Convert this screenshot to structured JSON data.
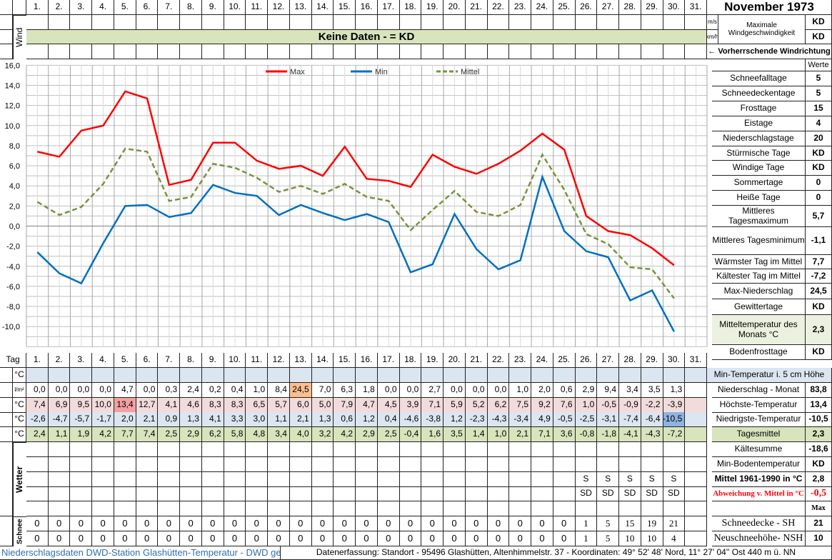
{
  "title": "November 1973",
  "colors": {
    "max": "#ff0000",
    "min": "#0070c0",
    "mittel": "#77933c",
    "row_max": "#f2dcdb",
    "row_min": "#dce6f1",
    "row_mittel": "#d8e4bc"
  },
  "days": [
    "1.",
    "2.",
    "3.",
    "4.",
    "5.",
    "6.",
    "7.",
    "8.",
    "9.",
    "10.",
    "11.",
    "12.",
    "13.",
    "14.",
    "15.",
    "16.",
    "17.",
    "18.",
    "19.",
    "20.",
    "21.",
    "22.",
    "23.",
    "24.",
    "25.",
    "26.",
    "27.",
    "28.",
    "29.",
    "30.",
    "31."
  ],
  "wind": {
    "label": "Wind",
    "no_data": "Keine Daten -  = KD",
    "unit_ms": "m/s",
    "unit_kmh": "km/h",
    "max_label": "Maximale Windgeschwindigkeit",
    "max_ms": "KD",
    "max_kmh": "KD",
    "direction_label": "← Vorherrschende Windrichtung"
  },
  "summary": {
    "werte_label": "Werte",
    "items": [
      {
        "label": "Schneefalltage",
        "value": "5"
      },
      {
        "label": "Schneedeckentage",
        "value": "5"
      },
      {
        "label": "Frosttage",
        "value": "15"
      },
      {
        "label": "Eistage",
        "value": "4"
      },
      {
        "label": "Niederschlagstage",
        "value": "20"
      },
      {
        "label": "Stürmische Tage",
        "value": "KD"
      },
      {
        "label": "Windige Tage",
        "value": "KD"
      },
      {
        "label": "Sommertage",
        "value": "0"
      },
      {
        "label": "Heiße Tage",
        "value": "0"
      },
      {
        "label": "Mittleres Tagesmaximum",
        "value": "5,7"
      },
      {
        "label": "Mittleres Tagesminimum",
        "value": "-1,1"
      },
      {
        "label": "Wärmster Tag im Mittel",
        "value": "7,7"
      },
      {
        "label": "Kältester Tag im Mittel",
        "value": "-7,2"
      },
      {
        "label": "Max-Niederschlag",
        "value": "24,5"
      },
      {
        "label": "Gewittertage",
        "value": "KD"
      },
      {
        "label": "Mitteltemperatur des Monats °C",
        "value": "2,3"
      },
      {
        "label": "Bodenfrosttage",
        "value": "KD"
      }
    ],
    "lower": [
      {
        "label": "Min-Temperatur i. 5 cm Höhe",
        "value": ""
      },
      {
        "label": "Niederschlag - Monat",
        "value": "83,8"
      },
      {
        "label": "Höchste-Temperatur",
        "value": "13,4"
      },
      {
        "label": "Niedrigste-Temperatur",
        "value": "-10,5"
      },
      {
        "label": "Tagesmittel",
        "value": "2,3"
      },
      {
        "label": "Kältesumme",
        "value": "-18,6"
      },
      {
        "label": "Min-Bodentemperatur",
        "value": "KD"
      },
      {
        "label": "Mittel 1961-1990 in °C",
        "value": "2,8"
      },
      {
        "label": "Abweichung v. Mittel in °C",
        "value": "-0,5"
      },
      {
        "label": "",
        "value": "Max"
      },
      {
        "label": "Schneedecke -   SH",
        "value": "21"
      },
      {
        "label": "Neuschneehöhe- NSH",
        "value": "10"
      }
    ]
  },
  "table": {
    "tag_label": "Tag",
    "rows": [
      {
        "unit": "°C",
        "values": []
      },
      {
        "unit": "l/m²",
        "values": [
          "0,0",
          "0,0",
          "0,0",
          "0,0",
          "4,7",
          "0,0",
          "0,3",
          "2,4",
          "0,2",
          "0,4",
          "1,0",
          "8,4",
          "24,5",
          "7,0",
          "6,3",
          "1,8",
          "0,0",
          "0,0",
          "2,7",
          "0,0",
          "0,0",
          "0,0",
          "1,0",
          "2,0",
          "0,6",
          "2,9",
          "9,4",
          "3,4",
          "3,5",
          "1,3"
        ]
      },
      {
        "unit": "°C",
        "values": [
          "7,4",
          "6,9",
          "9,5",
          "10,0",
          "13,4",
          "12,7",
          "4,1",
          "4,6",
          "8,3",
          "8,3",
          "6,5",
          "5,7",
          "6,0",
          "5,0",
          "7,9",
          "4,7",
          "4,5",
          "3,9",
          "7,1",
          "5,9",
          "5,2",
          "6,2",
          "7,5",
          "9,2",
          "7,6",
          "1,0",
          "-0,5",
          "-0,9",
          "-2,2",
          "-3,9"
        ]
      },
      {
        "unit": "°C",
        "values": [
          "-2,6",
          "-4,7",
          "-5,7",
          "-1,7",
          "2,0",
          "2,1",
          "0,9",
          "1,3",
          "4,1",
          "3,3",
          "3,0",
          "1,1",
          "2,1",
          "1,3",
          "0,6",
          "1,2",
          "0,4",
          "-4,6",
          "-3,8",
          "1,2",
          "-2,3",
          "-4,3",
          "-3,4",
          "4,9",
          "-0,5",
          "-2,5",
          "-3,1",
          "-7,4",
          "-6,4",
          "-10,5"
        ]
      },
      {
        "unit": "°C",
        "values": [
          "2,4",
          "1,1",
          "1,9",
          "4,2",
          "7,7",
          "7,4",
          "2,5",
          "2,9",
          "6,2",
          "5,8",
          "4,8",
          "3,4",
          "4,0",
          "3,2",
          "4,2",
          "2,9",
          "2,5",
          "-0,4",
          "1,6",
          "3,5",
          "1,4",
          "1,0",
          "2,1",
          "7,1",
          "3,6",
          "-0,8",
          "-1,8",
          "-4,1",
          "-4,3",
          "-7,2"
        ]
      }
    ],
    "wetter_label": "Wetter",
    "wetter_rows": [
      [],
      [],
      [
        "",
        "",
        "",
        "",
        "",
        "",
        "",
        "",
        "",
        "",
        "",
        "",
        "",
        "",
        "",
        "",
        "",
        "",
        "",
        "",
        "",
        "",
        "",
        "",
        "",
        "S",
        "S",
        "S",
        "S",
        "S"
      ],
      [
        "",
        "",
        "",
        "",
        "",
        "",
        "",
        "",
        "",
        "",
        "",
        "",
        "",
        "",
        "",
        "",
        "",
        "",
        "",
        "",
        "",
        "",
        "",
        "",
        "",
        "SD",
        "SD",
        "SD",
        "SD",
        "SD"
      ],
      []
    ],
    "schnee_label": "Schnee",
    "schnee_rows": [
      [
        "0",
        "0",
        "0",
        "0",
        "0",
        "0",
        "0",
        "0",
        "0",
        "0",
        "0",
        "0",
        "0",
        "0",
        "0",
        "0",
        "0",
        "0",
        "0",
        "0",
        "0",
        "0",
        "0",
        "0",
        "0",
        "1",
        "5",
        "15",
        "19",
        "21"
      ],
      [
        "0",
        "0",
        "0",
        "0",
        "0",
        "0",
        "0",
        "0",
        "0",
        "0",
        "0",
        "0",
        "0",
        "0",
        "0",
        "0",
        "0",
        "0",
        "0",
        "0",
        "0",
        "0",
        "0",
        "0",
        "0",
        "1",
        "5",
        "10",
        "10",
        "4"
      ]
    ]
  },
  "footer": {
    "left": "Niederschlagsdaten DWD-Station Glashütten-Temperatur -  DWD gerechnet",
    "right": "Datenerfassung: Standort -  95496  Glashütten, Altenhimmelstr. 37 - Koordinaten:  49° 52' 48' Nord,   11° 27' 04'' Ost   440 m ü. NN"
  },
  "chart_data": {
    "type": "line",
    "x": [
      1,
      2,
      3,
      4,
      5,
      6,
      7,
      8,
      9,
      10,
      11,
      12,
      13,
      14,
      15,
      16,
      17,
      18,
      19,
      20,
      21,
      22,
      23,
      24,
      25,
      26,
      27,
      28,
      29,
      30
    ],
    "ylim": [
      -12,
      16
    ],
    "yticks": [
      "16,0",
      "14,0",
      "12,0",
      "10,0",
      "8,0",
      "6,0",
      "4,0",
      "2,0",
      "0,0",
      "-2,0",
      "-4,0",
      "-6,0",
      "-8,0",
      "-10,0"
    ],
    "ytick_values": [
      16,
      14,
      12,
      10,
      8,
      6,
      4,
      2,
      0,
      -2,
      -4,
      -6,
      -8,
      -10
    ],
    "grid": true,
    "legend_position": "top",
    "series": [
      {
        "name": "Max",
        "style": "solid",
        "values": [
          7.4,
          6.9,
          9.5,
          10.0,
          13.4,
          12.7,
          4.1,
          4.6,
          8.3,
          8.3,
          6.5,
          5.7,
          6.0,
          5.0,
          7.9,
          4.7,
          4.5,
          3.9,
          7.1,
          5.9,
          5.2,
          6.2,
          7.5,
          9.2,
          7.6,
          1.0,
          -0.5,
          -0.9,
          -2.2,
          -3.9
        ]
      },
      {
        "name": "Min",
        "style": "solid",
        "values": [
          -2.6,
          -4.7,
          -5.7,
          -1.7,
          2.0,
          2.1,
          0.9,
          1.3,
          4.1,
          3.3,
          3.0,
          1.1,
          2.1,
          1.3,
          0.6,
          1.2,
          0.4,
          -4.6,
          -3.8,
          1.2,
          -2.3,
          -4.3,
          -3.4,
          4.9,
          -0.5,
          -2.5,
          -3.1,
          -7.4,
          -6.4,
          -10.5
        ]
      },
      {
        "name": "Mittel",
        "style": "dashed",
        "values": [
          2.4,
          1.1,
          1.9,
          4.2,
          7.7,
          7.4,
          2.5,
          2.9,
          6.2,
          5.8,
          4.8,
          3.4,
          4.0,
          3.2,
          4.2,
          2.9,
          2.5,
          -0.4,
          1.6,
          3.5,
          1.4,
          1.0,
          2.1,
          7.1,
          3.6,
          -0.8,
          -1.8,
          -4.1,
          -4.3,
          -7.2
        ]
      }
    ]
  }
}
